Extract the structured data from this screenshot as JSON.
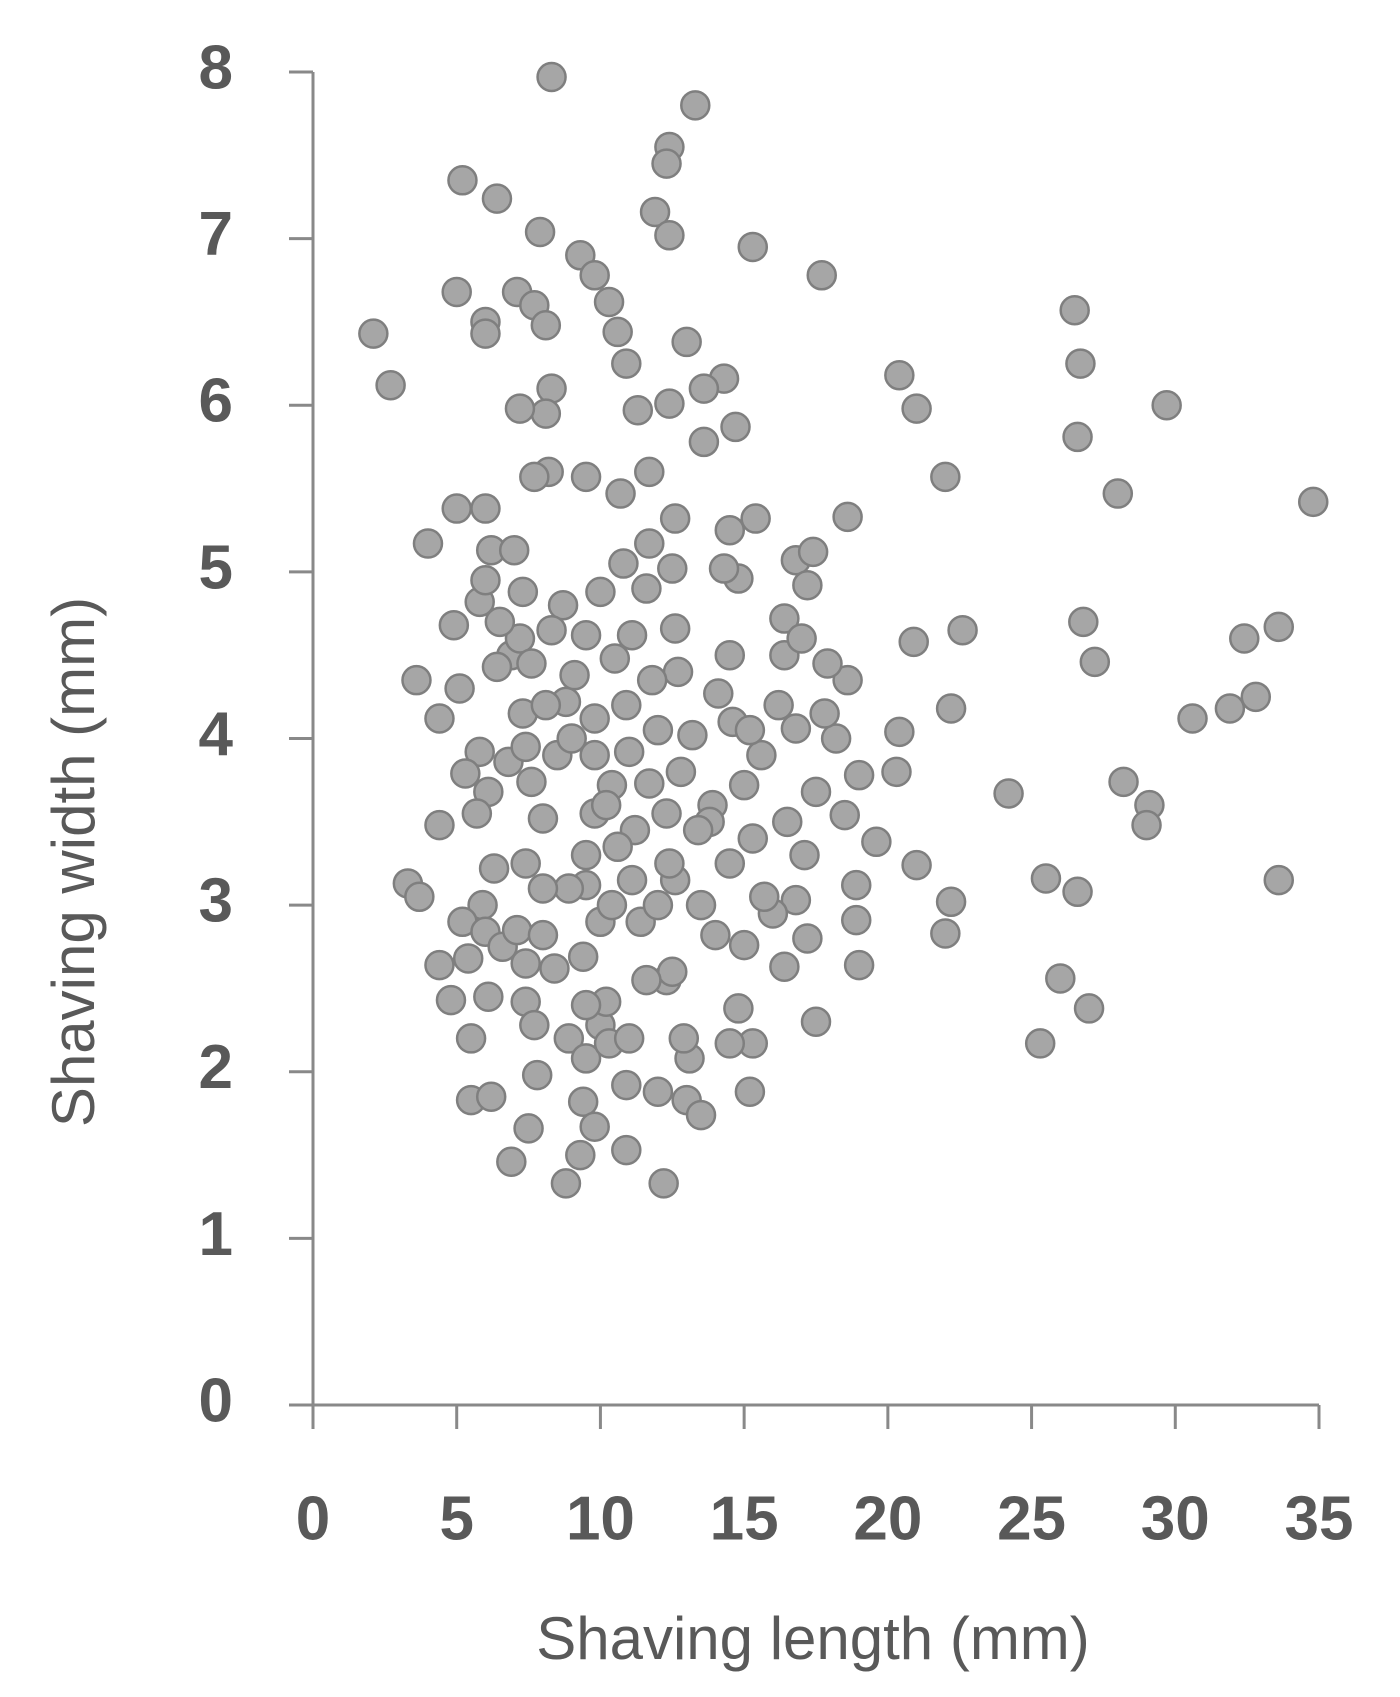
{
  "chart_data": {
    "type": "scatter",
    "x_label": "Shaving length (mm)",
    "y_label": "Shaving width (mm)",
    "color": "#a6a6a6",
    "edge_color": "#7f7f7f",
    "xlim": [
      0,
      35
    ],
    "xticks": [
      0,
      5,
      10,
      15,
      20,
      25,
      30,
      35
    ],
    "ylim": [
      0,
      8
    ],
    "yticks": [
      0,
      1,
      2,
      3,
      4,
      5,
      6,
      7,
      8
    ],
    "grid": false,
    "x": [
      2.1,
      2.7,
      5.2,
      6.4,
      8.3,
      13.3,
      12.4,
      12.3,
      11.9,
      12.4,
      7.9,
      15.3,
      17.7,
      9.3,
      9.8,
      5.0,
      7.1,
      7.7,
      8.1,
      6.0,
      6.0,
      10.3,
      10.6,
      10.9,
      13.0,
      14.3,
      13.6,
      8.3,
      8.1,
      7.2,
      11.3,
      12.4,
      14.7,
      13.6,
      20.4,
      21.0,
      26.5,
      26.7,
      26.6,
      29.7,
      22.0,
      28.0,
      34.8,
      18.6,
      8.2,
      7.7,
      9.5,
      11.7,
      10.7,
      4.0,
      5.0,
      6.0,
      6.2,
      7.0,
      12.6,
      14.5,
      15.4,
      16.8,
      17.4,
      17.2,
      14.8,
      14.3,
      20.9,
      22.6,
      26.8,
      27.2,
      33.6,
      32.4,
      22.2,
      30.6,
      31.9,
      32.8,
      20.4,
      20.3,
      24.2,
      28.2,
      29.1,
      29.0,
      33.6,
      21.0,
      22.2,
      22.0,
      25.5,
      26.6,
      26.0,
      27.0,
      25.3,
      17.5,
      19.6,
      19.0,
      18.9,
      18.9,
      19.0,
      18.5,
      18.6,
      17.9,
      18.2,
      17.8,
      16.4,
      16.4,
      16.8,
      17.0,
      3.3,
      3.7,
      4.4,
      3.6,
      4.9,
      4.4,
      5.1,
      4.4,
      4.8,
      5.5,
      5.5,
      6.2,
      6.9,
      7.5,
      7.8,
      8.8,
      9.3,
      9.4,
      9.8,
      10.9,
      12.2,
      12.0,
      13.0,
      13.5,
      15.2,
      13.1,
      12.9,
      15.3,
      14.8,
      14.5,
      10.9,
      12.3,
      16.4,
      16.8,
      17.2,
      17.1,
      15.0,
      15.3,
      16.5,
      17.5,
      14.0,
      14.5,
      13.9,
      15.0,
      15.6,
      14.6,
      14.5,
      13.2,
      12.7,
      12.6,
      12.5,
      11.7,
      11.6,
      10.8,
      10.0,
      11.1,
      10.5,
      9.5,
      8.7,
      8.3,
      7.3,
      6.9,
      7.2,
      6.4,
      5.8,
      6.0,
      5.8,
      5.3,
      6.1,
      5.7,
      6.8,
      7.4,
      7.3,
      7.6,
      8.0,
      8.5,
      8.8,
      9.0,
      9.8,
      9.8,
      10.4,
      11.0,
      11.7,
      12.0,
      12.8,
      12.3,
      11.2,
      10.6,
      9.5,
      9.5,
      8.9,
      8.0,
      7.4,
      6.3,
      5.9,
      5.2,
      6.0,
      6.6,
      5.4,
      6.1,
      7.4,
      7.7,
      8.9,
      9.5,
      10.0,
      10.3,
      10.2,
      11.0,
      9.4,
      8.4,
      7.1,
      8.0,
      10.0,
      11.4,
      12.0,
      12.6,
      12.5,
      11.6,
      11.1,
      10.4,
      9.5,
      7.4,
      13.5,
      13.8,
      16.0,
      15.7,
      16.2,
      15.2,
      14.1,
      8.1,
      9.1,
      10.9,
      11.8,
      6.5,
      7.6,
      9.8,
      10.2,
      13.4,
      12.4
    ],
    "values": [
      6.43,
      6.12,
      7.35,
      7.24,
      7.97,
      7.8,
      7.55,
      7.45,
      7.16,
      7.02,
      7.04,
      6.95,
      6.78,
      6.9,
      6.78,
      6.68,
      6.68,
      6.6,
      6.48,
      6.5,
      6.43,
      6.62,
      6.44,
      6.25,
      6.38,
      6.16,
      6.1,
      6.1,
      5.95,
      5.98,
      5.97,
      6.01,
      5.87,
      5.78,
      6.18,
      5.98,
      6.57,
      6.25,
      5.81,
      6.0,
      5.57,
      5.47,
      5.42,
      5.33,
      5.6,
      5.57,
      5.57,
      5.6,
      5.47,
      5.17,
      5.38,
      5.38,
      5.13,
      5.13,
      5.32,
      5.25,
      5.32,
      5.07,
      5.12,
      4.92,
      4.96,
      5.02,
      4.58,
      4.65,
      4.7,
      4.46,
      4.67,
      4.6,
      4.18,
      4.12,
      4.18,
      4.25,
      4.04,
      3.8,
      3.67,
      3.74,
      3.6,
      3.48,
      3.15,
      3.24,
      3.02,
      2.83,
      3.16,
      3.08,
      2.56,
      2.38,
      2.17,
      2.3,
      3.38,
      2.64,
      3.12,
      2.91,
      3.78,
      3.54,
      4.35,
      4.45,
      4.0,
      4.15,
      4.72,
      4.5,
      4.06,
      4.6,
      3.13,
      3.05,
      3.48,
      4.35,
      4.68,
      4.12,
      4.3,
      2.64,
      2.43,
      2.2,
      1.83,
      1.85,
      1.46,
      1.66,
      1.98,
      1.33,
      1.5,
      1.82,
      1.67,
      1.53,
      1.33,
      1.88,
      1.83,
      1.74,
      1.88,
      2.08,
      2.2,
      2.17,
      2.38,
      2.17,
      1.92,
      2.55,
      2.63,
      3.03,
      2.8,
      3.3,
      2.76,
      3.4,
      3.5,
      3.68,
      2.82,
      3.25,
      3.6,
      3.72,
      3.9,
      4.1,
      4.5,
      4.02,
      4.4,
      4.66,
      5.02,
      5.17,
      4.9,
      5.05,
      4.88,
      4.62,
      4.48,
      4.62,
      4.8,
      4.65,
      4.88,
      4.5,
      4.6,
      4.43,
      4.82,
      4.95,
      3.92,
      3.79,
      3.68,
      3.55,
      3.86,
      3.95,
      4.15,
      3.74,
      3.52,
      3.9,
      4.22,
      4.0,
      3.55,
      3.9,
      3.72,
      3.92,
      3.73,
      4.05,
      3.8,
      3.55,
      3.45,
      3.35,
      3.3,
      3.12,
      3.1,
      3.1,
      3.25,
      3.22,
      3.0,
      2.9,
      2.84,
      2.75,
      2.68,
      2.45,
      2.42,
      2.28,
      2.2,
      2.08,
      2.28,
      2.17,
      2.42,
      2.2,
      2.69,
      2.62,
      2.85,
      2.82,
      2.9,
      2.9,
      3.0,
      3.15,
      2.6,
      2.55,
      3.15,
      3.0,
      2.4,
      2.65,
      3.0,
      3.5,
      2.95,
      3.05,
      4.2,
      4.05,
      4.27,
      4.2,
      4.38,
      4.2,
      4.35,
      4.7,
      4.45,
      4.12,
      3.6,
      3.45,
      3.25
    ]
  }
}
